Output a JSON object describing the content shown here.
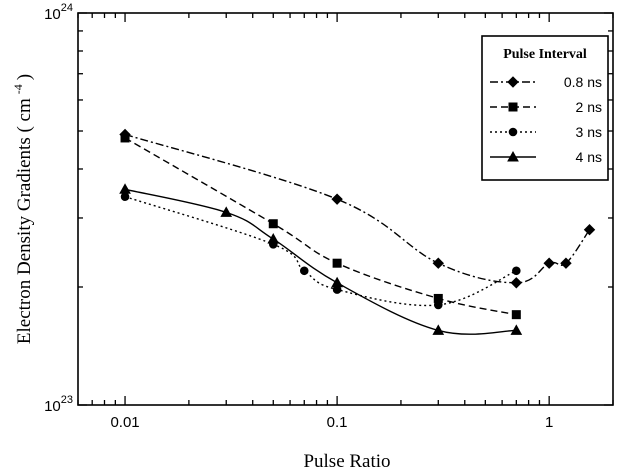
{
  "chart_data": {
    "type": "line",
    "xlabel": "Pulse Ratio",
    "ylabel": "Electron Density Gradients ( cm",
    "ylabel_exponent": "-4",
    "ylabel_close": ")",
    "xscale": "log",
    "yscale": "log",
    "xlim": [
      0.006,
      2
    ],
    "ylim": [
      1e+23,
      1e+24
    ],
    "x_ticks": [
      {
        "value": 0.01,
        "label": "0.01"
      },
      {
        "value": 0.1,
        "label": "0.1"
      },
      {
        "value": 1,
        "label": "1"
      }
    ],
    "y_ticks": [
      {
        "value": 1e+23,
        "base": "10",
        "exp": "23"
      },
      {
        "value": 1e+24,
        "base": "10",
        "exp": "24"
      }
    ],
    "legend": {
      "title": "Pulse Interval",
      "position": "top-right"
    },
    "series": [
      {
        "name": "0.8 ns",
        "marker": "diamond",
        "line": "dashdot",
        "x": [
          0.01,
          0.1,
          0.3,
          0.7,
          1.0,
          1.2,
          1.55
        ],
        "y": [
          4.9e+23,
          3.35e+23,
          2.3e+23,
          2.05e+23,
          2.3e+23,
          2.3e+23,
          2.8e+23
        ]
      },
      {
        "name": "2 ns",
        "marker": "square",
        "line": "dashed",
        "x": [
          0.01,
          0.05,
          0.1,
          0.3,
          0.7
        ],
        "y": [
          4.8e+23,
          2.9e+23,
          2.3e+23,
          1.87e+23,
          1.7e+23
        ]
      },
      {
        "name": "3 ns",
        "marker": "circle",
        "line": "dotted",
        "x": [
          0.01,
          0.05,
          0.07,
          0.1,
          0.3,
          0.7
        ],
        "y": [
          3.4e+23,
          2.57e+23,
          2.2e+23,
          1.97e+23,
          1.8e+23,
          2.2e+23
        ]
      },
      {
        "name": "4 ns",
        "marker": "triangle",
        "line": "solid",
        "x": [
          0.01,
          0.03,
          0.05,
          0.1,
          0.3,
          0.7
        ],
        "y": [
          3.55e+23,
          3.1e+23,
          2.65e+23,
          2.05e+23,
          1.55e+23,
          1.55e+23
        ]
      }
    ],
    "grid": false
  }
}
